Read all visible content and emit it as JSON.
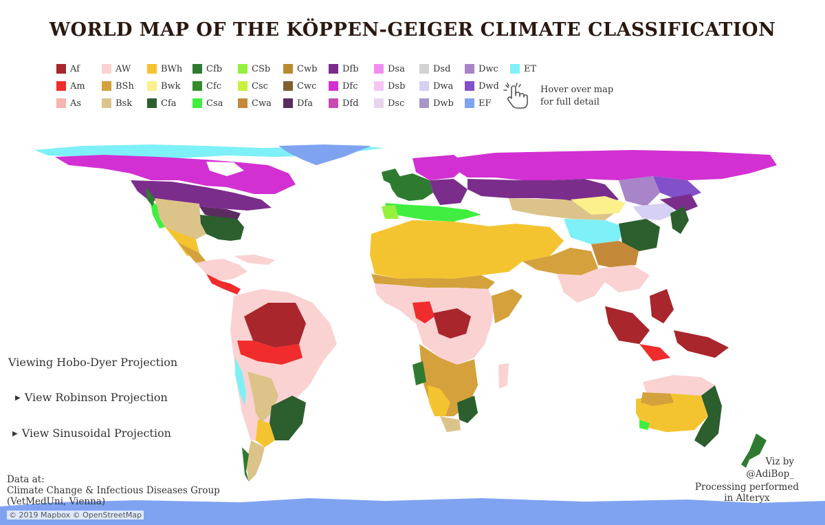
{
  "title": "WORLD MAP OF THE KÖPPEN-GEIGER CLIMATE CLASSIFICATION",
  "legend": [
    {
      "code": "Af",
      "color": "#a8262c"
    },
    {
      "code": "Am",
      "color": "#f02c2c"
    },
    {
      "code": "As",
      "color": "#f7b4b0"
    },
    {
      "code": "AW",
      "color": "#fad2d2"
    },
    {
      "code": "BSh",
      "color": "#d4a13c"
    },
    {
      "code": "Bsk",
      "color": "#dcc38a"
    },
    {
      "code": "BWh",
      "color": "#f4c430"
    },
    {
      "code": "Bwk",
      "color": "#fbf08c"
    },
    {
      "code": "Cfa",
      "color": "#2c5e2e"
    },
    {
      "code": "Cfb",
      "color": "#2f7a31"
    },
    {
      "code": "Cfc",
      "color": "#328c2a"
    },
    {
      "code": "Csa",
      "color": "#40ee40"
    },
    {
      "code": "CSb",
      "color": "#96f040"
    },
    {
      "code": "Csc",
      "color": "#c8f040"
    },
    {
      "code": "Cwa",
      "color": "#c48a3a"
    },
    {
      "code": "Cwb",
      "color": "#b88a30"
    },
    {
      "code": "Cwc",
      "color": "#806030"
    },
    {
      "code": "Dfa",
      "color": "#5a2c60"
    },
    {
      "code": "Dfb",
      "color": "#7b2d8c"
    },
    {
      "code": "Dfc",
      "color": "#d230d2"
    },
    {
      "code": "Dfd",
      "color": "#c84ab0"
    },
    {
      "code": "Dsa",
      "color": "#f08cf0"
    },
    {
      "code": "Dsb",
      "color": "#f5c4f5"
    },
    {
      "code": "Dsc",
      "color": "#e8d4ef"
    },
    {
      "code": "Dsd",
      "color": "#d2d2d2"
    },
    {
      "code": "Dwa",
      "color": "#d7d0f5"
    },
    {
      "code": "Dwb",
      "color": "#a896c8"
    },
    {
      "code": "Dwc",
      "color": "#a884c8"
    },
    {
      "code": "Dwd",
      "color": "#8250c8"
    },
    {
      "code": "EF",
      "color": "#7fa3f0"
    },
    {
      "code": "ET",
      "color": "#7ef0f7"
    }
  ],
  "hover_hint": {
    "line1": "Hover over map",
    "line2": "for full detail",
    "icon": "pointer-hand-icon"
  },
  "projection": {
    "current": "Viewing Hobo-Dyer Projection",
    "robinson": "View Robinson Projection",
    "sinusoidal": "View Sinusoidal Projection"
  },
  "data_credit": {
    "line1": "Data at:",
    "line2": "Climate Change & Infectious Diseases Group",
    "line3": "(VetMedUni, Vienna)"
  },
  "map_copyright": "© 2019 Mapbox © OpenStreetMap",
  "viz_credit": {
    "line1": "Viz by",
    "line2": "@AdiBop_"
  },
  "processing_credit": {
    "line1": "Processing performed",
    "line2": "in Alteryx"
  }
}
